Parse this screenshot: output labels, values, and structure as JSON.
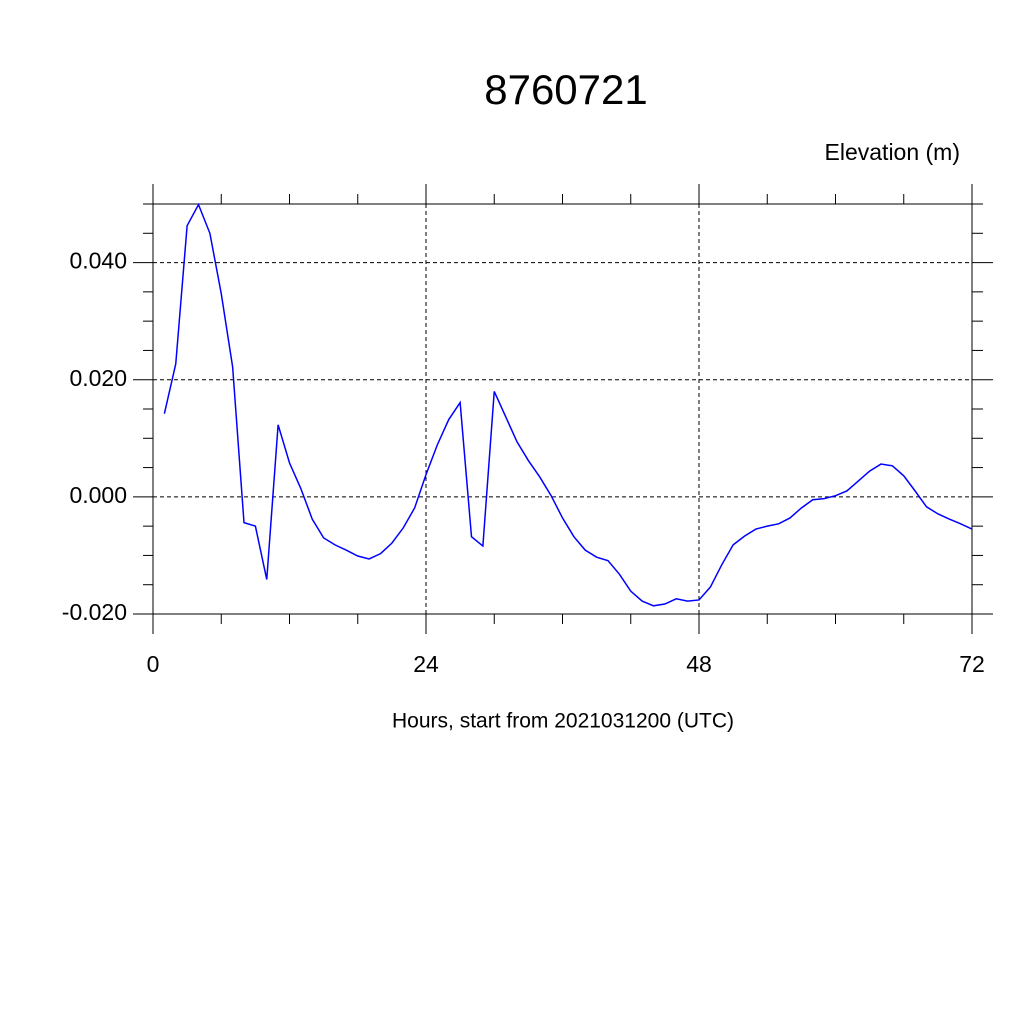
{
  "chart_data": {
    "type": "line",
    "title": "8760721",
    "ylabel": "Elevation (m)",
    "xlabel": "Hours, start from 2021031200 (UTC)",
    "x": [
      1,
      2,
      3,
      4,
      5,
      6,
      7,
      8,
      9,
      10,
      11,
      12,
      13,
      14,
      15,
      16,
      17,
      18,
      19,
      20,
      21,
      22,
      23,
      24,
      25,
      26,
      27,
      28,
      29,
      30,
      31,
      32,
      33,
      34,
      35,
      36,
      37,
      38,
      39,
      40,
      41,
      42,
      43,
      44,
      45,
      46,
      47,
      48,
      49,
      50,
      51,
      52,
      53,
      54,
      55,
      56,
      57,
      58,
      59,
      60,
      61,
      62,
      63,
      64,
      65,
      66,
      67,
      68,
      69,
      70,
      71,
      72
    ],
    "series": [
      {
        "name": "8760721",
        "color": "#0000ff",
        "values": [
          0.0142,
          0.0227,
          0.0463,
          0.0499,
          0.045,
          0.0347,
          0.0222,
          -0.0044,
          -0.005,
          -0.0141,
          0.0123,
          0.0058,
          0.0014,
          -0.0038,
          -0.007,
          -0.0082,
          -0.0091,
          -0.0101,
          -0.0106,
          -0.0097,
          -0.0079,
          -0.0053,
          -0.0019,
          0.0038,
          0.0089,
          0.0132,
          0.0161,
          -0.0068,
          -0.0084,
          0.018,
          0.0137,
          0.0094,
          0.0062,
          0.0034,
          0.0002,
          -0.0036,
          -0.0068,
          -0.0091,
          -0.0103,
          -0.0109,
          -0.0132,
          -0.0161,
          -0.0178,
          -0.0186,
          -0.0183,
          -0.0174,
          -0.0178,
          -0.0176,
          -0.0154,
          -0.0116,
          -0.0082,
          -0.0067,
          -0.0055,
          -0.005,
          -0.0046,
          -0.0036,
          -0.0019,
          -0.0005,
          -0.0003,
          0.0002,
          0.001,
          0.0027,
          0.0044,
          0.0056,
          0.0053,
          0.0036,
          0.001,
          -0.0017,
          -0.0029,
          -0.0038,
          -0.0046,
          -0.0055
        ]
      }
    ],
    "xlim": [
      0,
      72
    ],
    "xticks": [
      0,
      24,
      48,
      72
    ],
    "xminorticks": [
      6,
      12,
      18,
      30,
      36,
      42,
      54,
      60,
      66
    ],
    "ylim": [
      -0.02,
      0.05
    ],
    "yticks": [
      {
        "value": -0.02,
        "label": "-0.020"
      },
      {
        "value": 0,
        "label": "0.000"
      },
      {
        "value": 0.02,
        "label": "0.020"
      },
      {
        "value": 0.04,
        "label": "0.040"
      }
    ],
    "yminorticks": [
      -0.015,
      -0.01,
      -0.005,
      0.005,
      0.01,
      0.015,
      0.025,
      0.03,
      0.035,
      0.045,
      0.05
    ],
    "grid": true
  }
}
